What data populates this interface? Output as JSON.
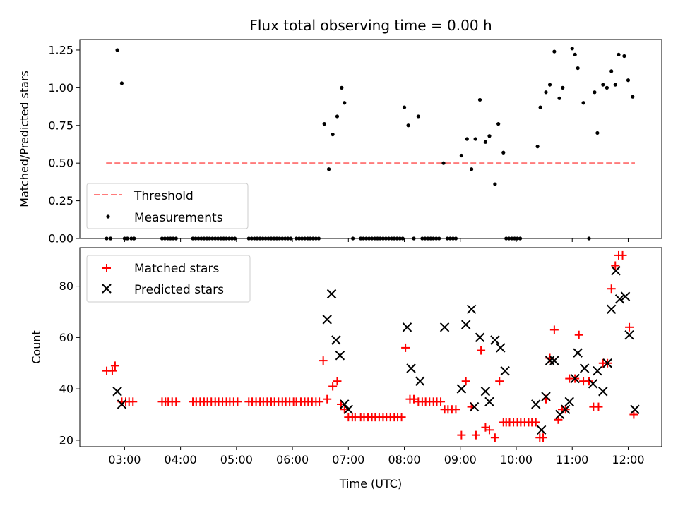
{
  "chart_data": [
    {
      "type": "scatter",
      "title": "Flux total observing time = 0.00 h",
      "xlabel": "",
      "ylabel": "Matched/Predicted stars",
      "ylim": [
        0,
        1.32
      ],
      "yticks": [
        0.0,
        0.25,
        0.5,
        0.75,
        1.0,
        1.25
      ],
      "ytick_labels": [
        "0.00",
        "0.25",
        "0.50",
        "0.75",
        "1.00",
        "1.25"
      ],
      "legend_position": "lower-left",
      "threshold": {
        "name": "Threshold",
        "value": 0.5,
        "x_start": 2.67,
        "x_end": 12.12,
        "color": "#ff7b7b"
      },
      "series": [
        {
          "name": "Measurements",
          "color": "#000000",
          "x": [
            2.68,
            2.75,
            2.87,
            2.95,
            3.0,
            3.05,
            3.12,
            3.17,
            3.67,
            3.72,
            3.77,
            3.82,
            3.87,
            3.92,
            4.22,
            4.27,
            4.32,
            4.37,
            4.42,
            4.47,
            4.52,
            4.57,
            4.62,
            4.67,
            4.72,
            4.77,
            4.82,
            4.87,
            4.92,
            4.97,
            5.22,
            5.27,
            5.32,
            5.37,
            5.42,
            5.47,
            5.52,
            5.57,
            5.62,
            5.67,
            5.72,
            5.77,
            5.82,
            5.87,
            5.92,
            5.97,
            6.07,
            6.12,
            6.17,
            6.22,
            6.27,
            6.32,
            6.37,
            6.42,
            6.47,
            6.57,
            6.65,
            6.72,
            6.8,
            6.88,
            6.93,
            7.08,
            7.22,
            7.27,
            7.32,
            7.37,
            7.42,
            7.47,
            7.52,
            7.57,
            7.62,
            7.67,
            7.72,
            7.77,
            7.82,
            7.87,
            7.92,
            7.97,
            8.0,
            8.07,
            8.17,
            8.25,
            8.32,
            8.37,
            8.42,
            8.47,
            8.52,
            8.57,
            8.62,
            8.7,
            8.77,
            8.82,
            8.87,
            8.92,
            9.02,
            9.12,
            9.2,
            9.27,
            9.35,
            9.45,
            9.52,
            9.62,
            9.68,
            9.77,
            9.82,
            9.87,
            9.92,
            9.97,
            10.02,
            10.07,
            10.38,
            10.43,
            10.53,
            10.6,
            10.68,
            10.77,
            10.83,
            11.0,
            11.05,
            11.1,
            11.2,
            11.3,
            11.4,
            11.45,
            11.55,
            11.62,
            11.7,
            11.77,
            11.83,
            11.93,
            12.0,
            12.08
          ],
          "values": [
            0,
            0,
            1.25,
            1.03,
            0,
            0,
            0,
            0,
            0,
            0,
            0,
            0,
            0,
            0,
            0,
            0,
            0,
            0,
            0,
            0,
            0,
            0,
            0,
            0,
            0,
            0,
            0,
            0,
            0,
            0,
            0,
            0,
            0,
            0,
            0,
            0,
            0,
            0,
            0,
            0,
            0,
            0,
            0,
            0,
            0,
            0,
            0,
            0,
            0,
            0,
            0,
            0,
            0,
            0,
            0,
            0.76,
            0.46,
            0.69,
            0.81,
            1.0,
            0.9,
            0,
            0,
            0,
            0,
            0,
            0,
            0,
            0,
            0,
            0,
            0,
            0,
            0,
            0,
            0,
            0,
            0,
            0.87,
            0.75,
            0,
            0.81,
            0,
            0,
            0,
            0,
            0,
            0,
            0,
            0.5,
            0,
            0,
            0,
            0,
            0.55,
            0.66,
            0.46,
            0.66,
            0.92,
            0.64,
            0.68,
            0.36,
            0.76,
            0.57,
            0,
            0,
            0,
            0,
            0,
            0,
            0.61,
            0.87,
            0.97,
            1.02,
            1.24,
            0.93,
            1.0,
            1.26,
            1.22,
            1.13,
            0.9,
            0,
            0.97,
            0.7,
            1.02,
            1.0,
            1.11,
            1.02,
            1.22,
            1.21,
            1.05,
            0.94
          ]
        }
      ]
    },
    {
      "type": "scatter",
      "title": "",
      "xlabel": "Time (UTC)",
      "ylabel": "Count",
      "ylim": [
        17.5,
        95
      ],
      "yticks": [
        20,
        40,
        60,
        80
      ],
      "ytick_labels": [
        "20",
        "40",
        "60",
        "80"
      ],
      "xlim": [
        2.2,
        12.6
      ],
      "xticks": [
        3,
        4,
        5,
        6,
        7,
        8,
        9,
        10,
        11,
        12
      ],
      "xtick_labels": [
        "03:00",
        "04:00",
        "05:00",
        "06:00",
        "07:00",
        "08:00",
        "09:00",
        "10:00",
        "11:00",
        "12:00"
      ],
      "legend_position": "top-left",
      "series": [
        {
          "name": "Matched stars",
          "color": "#ff0000",
          "marker": "plus",
          "x": [
            2.68,
            2.78,
            2.83,
            2.95,
            3.02,
            3.08,
            3.15,
            3.67,
            3.73,
            3.78,
            3.85,
            3.92,
            4.22,
            4.28,
            4.35,
            4.42,
            4.48,
            4.55,
            4.62,
            4.68,
            4.75,
            4.82,
            4.88,
            4.95,
            5.02,
            5.22,
            5.28,
            5.35,
            5.42,
            5.48,
            5.55,
            5.62,
            5.68,
            5.75,
            5.82,
            5.88,
            5.95,
            6.02,
            6.07,
            6.15,
            6.22,
            6.28,
            6.35,
            6.42,
            6.48,
            6.55,
            6.62,
            6.72,
            6.8,
            6.87,
            6.93,
            7.0,
            7.07,
            7.12,
            7.22,
            7.28,
            7.35,
            7.42,
            7.48,
            7.55,
            7.62,
            7.68,
            7.75,
            7.82,
            7.88,
            7.95,
            8.02,
            8.1,
            8.17,
            8.25,
            8.32,
            8.38,
            8.45,
            8.52,
            8.58,
            8.65,
            8.72,
            8.78,
            8.85,
            8.92,
            9.02,
            9.1,
            9.2,
            9.28,
            9.37,
            9.45,
            9.52,
            9.62,
            9.7,
            9.77,
            9.82,
            9.88,
            9.95,
            10.02,
            10.08,
            10.15,
            10.22,
            10.28,
            10.35,
            10.42,
            10.48,
            10.53,
            10.6,
            10.68,
            10.75,
            10.82,
            10.88,
            10.95,
            11.05,
            11.12,
            11.2,
            11.3,
            11.38,
            11.47,
            11.55,
            11.63,
            11.7,
            11.77,
            11.83,
            11.9,
            12.02,
            12.1
          ],
          "values": [
            47,
            47,
            49,
            35,
            35,
            35,
            35,
            35,
            35,
            35,
            35,
            35,
            35,
            35,
            35,
            35,
            35,
            35,
            35,
            35,
            35,
            35,
            35,
            35,
            35,
            35,
            35,
            35,
            35,
            35,
            35,
            35,
            35,
            35,
            35,
            35,
            35,
            35,
            35,
            35,
            35,
            35,
            35,
            35,
            35,
            51,
            36,
            41,
            43,
            34,
            32,
            29,
            29,
            29,
            29,
            29,
            29,
            29,
            29,
            29,
            29,
            29,
            29,
            29,
            29,
            29,
            56,
            36,
            36,
            35,
            35,
            35,
            35,
            35,
            35,
            35,
            32,
            32,
            32,
            32,
            22,
            43,
            33,
            22,
            55,
            25,
            24,
            21,
            43,
            27,
            27,
            27,
            27,
            27,
            27,
            27,
            27,
            27,
            27,
            21,
            21,
            36,
            52,
            63,
            28,
            32,
            32,
            44,
            44,
            61,
            43,
            43,
            33,
            33,
            50,
            50,
            79,
            88,
            92,
            92,
            64,
            30
          ],
          "ghost": 0
        },
        {
          "name": "Predicted stars",
          "color": "#000000",
          "marker": "x",
          "x": [
            2.87,
            2.95,
            6.62,
            6.7,
            6.78,
            6.85,
            6.93,
            7.0,
            8.05,
            8.12,
            8.28,
            8.72,
            9.02,
            9.1,
            9.2,
            9.25,
            9.35,
            9.45,
            9.52,
            9.62,
            9.72,
            9.8,
            10.35,
            10.45,
            10.53,
            10.6,
            10.68,
            10.78,
            10.88,
            10.95,
            11.05,
            11.1,
            11.22,
            11.37,
            11.45,
            11.55,
            11.63,
            11.7,
            11.78,
            11.85,
            11.95,
            12.02,
            12.12
          ],
          "values": [
            39,
            34,
            67,
            77,
            59,
            53,
            34,
            32,
            64,
            48,
            43,
            64,
            40,
            65,
            71,
            33,
            60,
            39,
            35,
            59,
            56,
            47,
            34,
            24,
            37,
            51,
            51,
            30,
            32,
            35,
            44,
            54,
            48,
            42,
            47,
            39,
            50,
            71,
            86,
            75,
            76,
            61,
            32
          ]
        }
      ]
    }
  ]
}
